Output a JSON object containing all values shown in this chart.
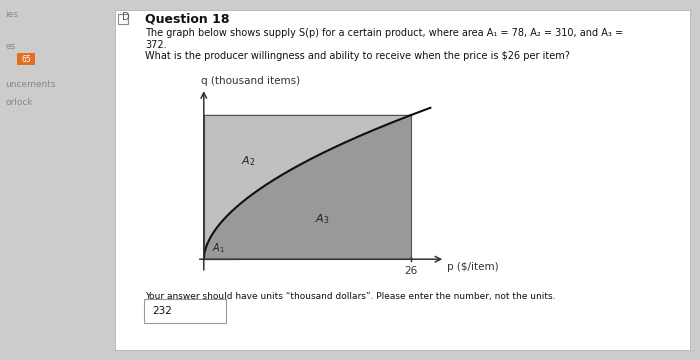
{
  "title": "Question 18",
  "desc1": "The graph below shows supply S(p) for a certain product, where area A₁ = 78, A₂ = 310, and A₃ =",
  "desc2": "372.",
  "question": "What is the producer willingness and ability to receive when the price is $26 per item?",
  "xlabel": "p ($/item)",
  "ylabel": "q (thousand items)",
  "answer_label": "Your answer should have units “thousand dollars”. Please enter the number, not the units.",
  "answer": "232",
  "bg_color": "#cccccc",
  "region_A1_color": "#aaaaaa",
  "region_A2_color": "#c0c0c0",
  "region_A3_color": "#999999",
  "supply_line_color": "#111111",
  "text_color": "#111111",
  "sidebar_color": "#888888",
  "white": "#ffffff",
  "box_border": "#999999",
  "title_fs": 9,
  "body_fs": 7,
  "small_fs": 6.5
}
